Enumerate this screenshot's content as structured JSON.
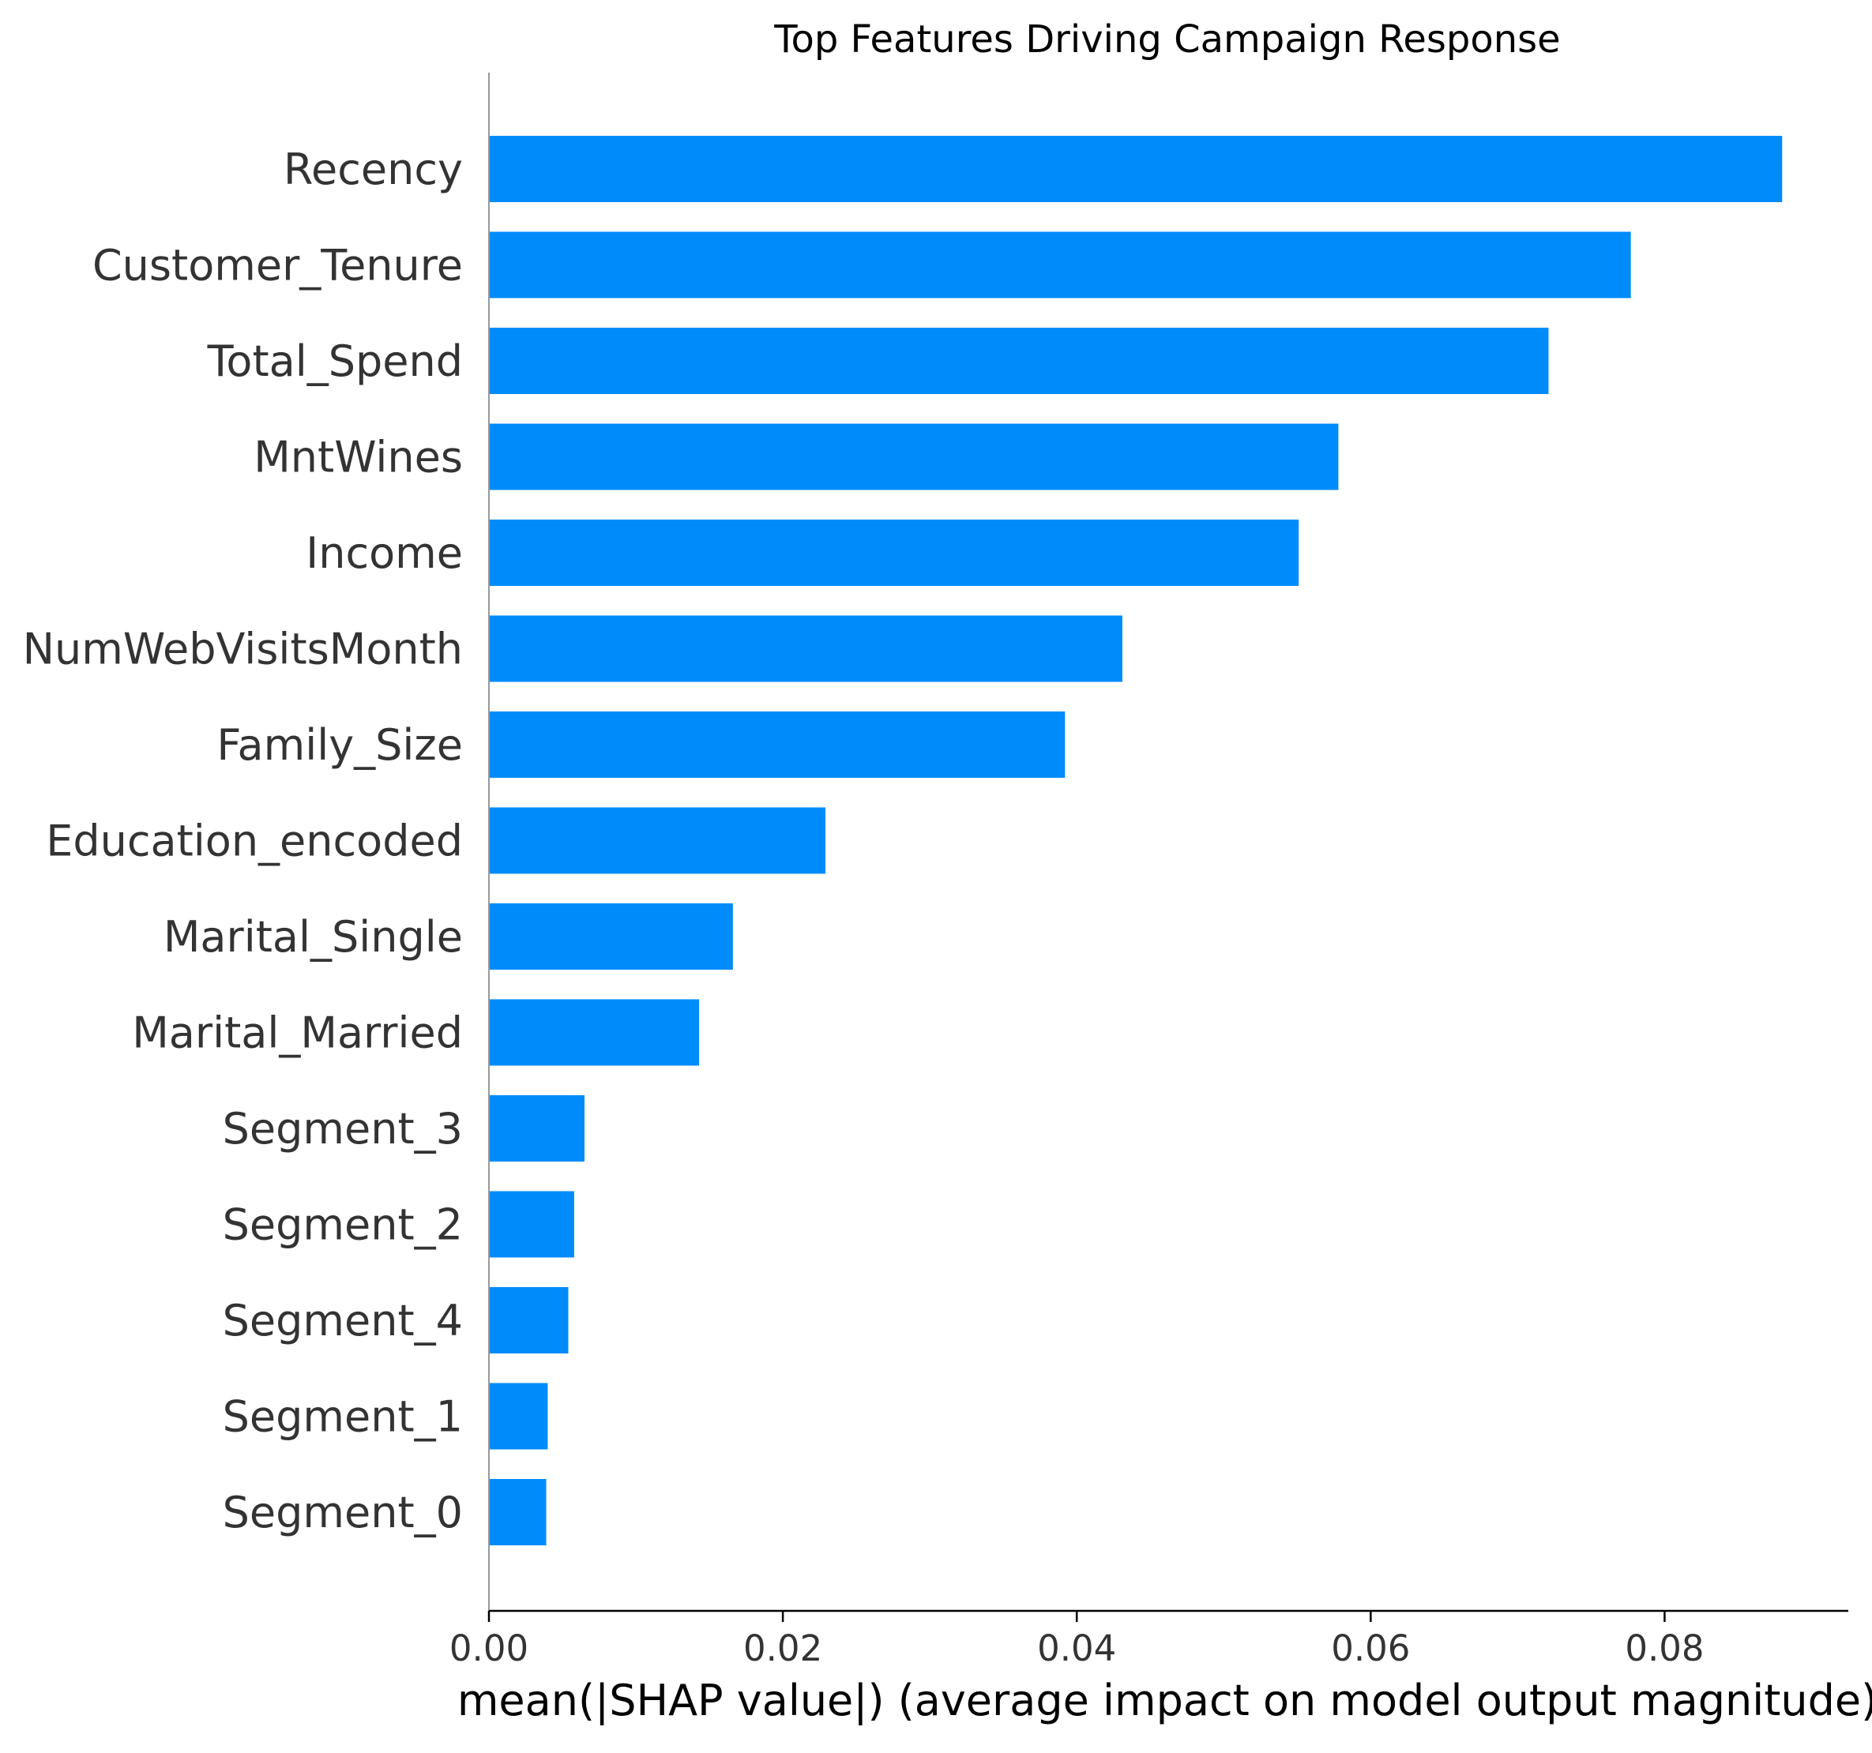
{
  "chart_data": {
    "type": "bar",
    "orientation": "horizontal",
    "title": "Top Features Driving Campaign Response",
    "xlabel": "mean(|SHAP value|) (average impact on model output magnitude)",
    "ylabel": "",
    "xlim": [
      0,
      0.0925
    ],
    "xticks": [
      0.0,
      0.02,
      0.04,
      0.06,
      0.08
    ],
    "xtick_labels": [
      "0.00",
      "0.02",
      "0.04",
      "0.06",
      "0.08"
    ],
    "categories": [
      "Recency",
      "Customer_Tenure",
      "Total_Spend",
      "MntWines",
      "Income",
      "NumWebVisitsMonth",
      "Family_Size",
      "Education_encoded",
      "Marital_Single",
      "Marital_Married",
      "Segment_3",
      "Segment_2",
      "Segment_4",
      "Segment_1",
      "Segment_0"
    ],
    "values": [
      0.088,
      0.0777,
      0.0721,
      0.0578,
      0.0551,
      0.0431,
      0.0392,
      0.0229,
      0.0166,
      0.0143,
      0.0065,
      0.0058,
      0.0054,
      0.004,
      0.0039
    ],
    "bar_color": "#008bfb",
    "grid": false,
    "legend": "none"
  }
}
